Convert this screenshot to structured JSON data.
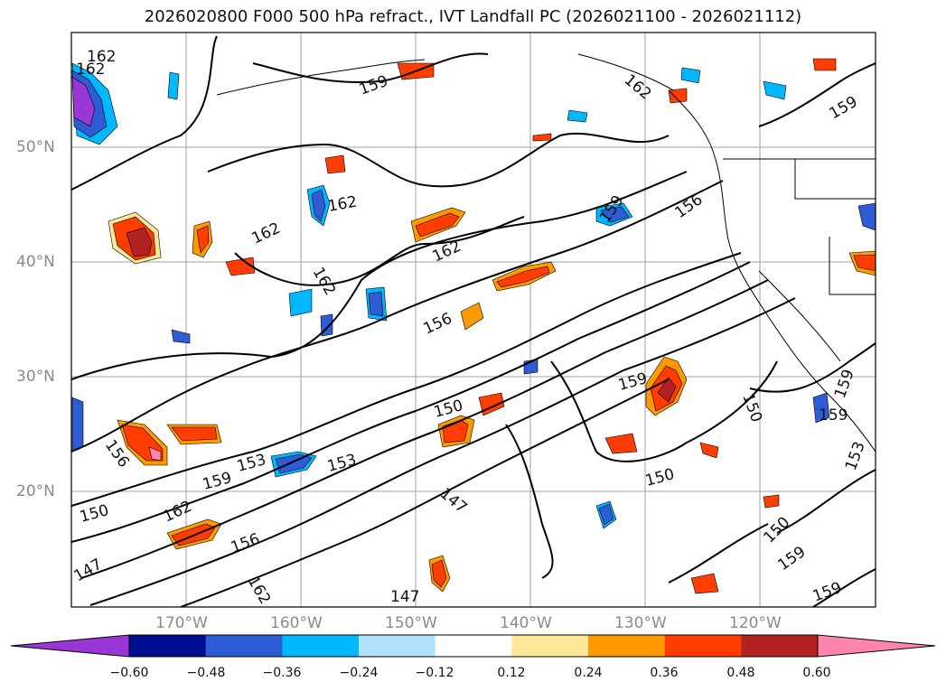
{
  "title": "2026020800 F000 500 hPa refract., IVT Landfall PC (2026021100 - 2026021112)",
  "lat_labels": [
    "50°N",
    "40°N",
    "30°N",
    "20°N"
  ],
  "lon_labels": [
    "170°W",
    "160°W",
    "150°W",
    "140°W",
    "130°W",
    "120°W"
  ],
  "contour_labels": [
    "162",
    "162",
    "159",
    "162",
    "159",
    "162",
    "162",
    "162",
    "162",
    "159",
    "156",
    "156",
    "159",
    "150",
    "156",
    "153",
    "159",
    "162",
    "153",
    "147",
    "150",
    "159",
    "150",
    "147",
    "150",
    "159",
    "159",
    "156",
    "162",
    "147",
    "150",
    "159",
    "153"
  ],
  "colorbar": {
    "colors": [
      "#9a35d6",
      "#000f8f",
      "#2e5cd4",
      "#00b8ff",
      "#b0e2ff",
      "#ffffff",
      "#ffe79a",
      "#ff9900",
      "#ff3d00",
      "#b22222",
      "#ff85ad"
    ],
    "ticks": [
      "−0.60",
      "−0.48",
      "−0.36",
      "−0.24",
      "−0.12",
      "0.12",
      "0.24",
      "0.36",
      "0.48",
      "0.60"
    ]
  }
}
